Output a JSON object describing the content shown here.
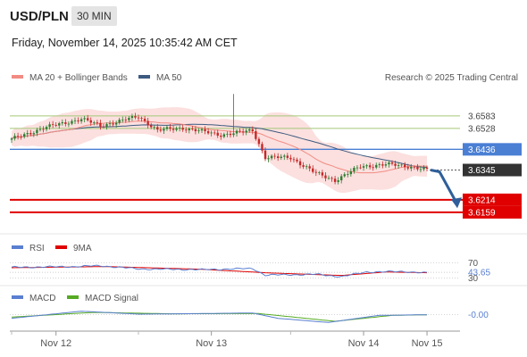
{
  "header": {
    "pair": "USD/PLN",
    "timeframe": "30 MIN",
    "datetime": "Friday, November 14, 2025 10:35:42 AM CET"
  },
  "legend": {
    "ma20": "MA 20 + Bollinger Bands",
    "ma50": "MA 50",
    "rsi": "RSI",
    "rsi_ma": "9MA",
    "macd": "MACD",
    "macd_signal": "MACD Signal",
    "copyright": "Research © 2025 Trading Central"
  },
  "colors": {
    "ma20": "#f28b82",
    "ma50": "#3d5a80",
    "up": "#2e7d32",
    "down": "#c62828",
    "resistance": "#a4c877",
    "pivot": "#4a7fd4",
    "support": "#e00000",
    "current": "#333333",
    "arrow": "#2f5f9a",
    "rsi": "#5a7fd0",
    "rsi_ma": "#e00000",
    "macd": "#5a7fd0",
    "macd_signal": "#55aa22"
  },
  "chart_data": [
    {
      "type": "candlestick",
      "x_ticks": [
        "Nov 12",
        "Nov 13",
        "Nov 14",
        "Nov 15"
      ],
      "ylim": [
        3.608,
        3.672
      ],
      "levels": [
        {
          "label": "3.6583",
          "value": 3.6583,
          "kind": "resistance"
        },
        {
          "label": "3.6528",
          "value": 3.6528,
          "kind": "resistance"
        },
        {
          "label": "3.6436",
          "value": 3.6436,
          "kind": "pivot"
        },
        {
          "label": "3.6345",
          "value": 3.6345,
          "kind": "current"
        },
        {
          "label": "3.6214",
          "value": 3.6214,
          "kind": "support"
        },
        {
          "label": "3.6159",
          "value": 3.6159,
          "kind": "support"
        }
      ],
      "anchors": [
        {
          "i": 0,
          "close": 3.648
        },
        {
          "i": 10,
          "close": 3.653
        },
        {
          "i": 22,
          "close": 3.657
        },
        {
          "i": 28,
          "close": 3.654
        },
        {
          "i": 40,
          "close": 3.658
        },
        {
          "i": 46,
          "close": 3.652
        },
        {
          "i": 54,
          "close": 3.653
        },
        {
          "i": 66,
          "close": 3.65
        },
        {
          "i": 72,
          "close": 3.651
        },
        {
          "i": 76,
          "close": 3.652
        },
        {
          "i": 80,
          "close": 3.64
        },
        {
          "i": 88,
          "close": 3.64
        },
        {
          "i": 96,
          "close": 3.633
        },
        {
          "i": 102,
          "close": 3.63
        },
        {
          "i": 110,
          "close": 3.636
        },
        {
          "i": 118,
          "close": 3.637
        },
        {
          "i": 126,
          "close": 3.636
        },
        {
          "i": 131,
          "close": 3.6345
        }
      ],
      "spike": {
        "i": 70,
        "high": 3.668
      },
      "projection": {
        "from": 3.6345,
        "to": 3.6185
      }
    },
    {
      "type": "line",
      "name": "RSI",
      "level_labels": [
        "70",
        "43.65",
        "30"
      ],
      "ylim": [
        20,
        80
      ],
      "anchors": [
        {
          "i": 0,
          "v": 58
        },
        {
          "i": 20,
          "v": 60
        },
        {
          "i": 28,
          "v": 62
        },
        {
          "i": 40,
          "v": 54
        },
        {
          "i": 60,
          "v": 52
        },
        {
          "i": 76,
          "v": 55
        },
        {
          "i": 80,
          "v": 38
        },
        {
          "i": 96,
          "v": 40
        },
        {
          "i": 104,
          "v": 34
        },
        {
          "i": 112,
          "v": 46
        },
        {
          "i": 124,
          "v": 47
        },
        {
          "i": 131,
          "v": 43.65
        }
      ],
      "ma_anchors": [
        {
          "i": 0,
          "v": 57
        },
        {
          "i": 30,
          "v": 60
        },
        {
          "i": 60,
          "v": 53
        },
        {
          "i": 80,
          "v": 44
        },
        {
          "i": 104,
          "v": 37
        },
        {
          "i": 118,
          "v": 46
        },
        {
          "i": 131,
          "v": 44
        }
      ]
    },
    {
      "type": "line",
      "name": "MACD",
      "level_labels": [
        "-0.00"
      ],
      "ylim": [
        -0.01,
        0.008
      ],
      "anchors": [
        {
          "i": 0,
          "v": -0.003
        },
        {
          "i": 22,
          "v": 0.003
        },
        {
          "i": 40,
          "v": 0.0005
        },
        {
          "i": 60,
          "v": 0.001
        },
        {
          "i": 76,
          "v": 0.0015
        },
        {
          "i": 84,
          "v": -0.003
        },
        {
          "i": 100,
          "v": -0.0065
        },
        {
          "i": 116,
          "v": -0.0005
        },
        {
          "i": 131,
          "v": 0.0
        }
      ],
      "signal_anchors": [
        {
          "i": 0,
          "v": -0.002
        },
        {
          "i": 26,
          "v": 0.002
        },
        {
          "i": 50,
          "v": 0.0008
        },
        {
          "i": 78,
          "v": 0.001
        },
        {
          "i": 102,
          "v": -0.0055
        },
        {
          "i": 120,
          "v": -0.0005
        },
        {
          "i": 131,
          "v": 0.0
        }
      ]
    }
  ]
}
